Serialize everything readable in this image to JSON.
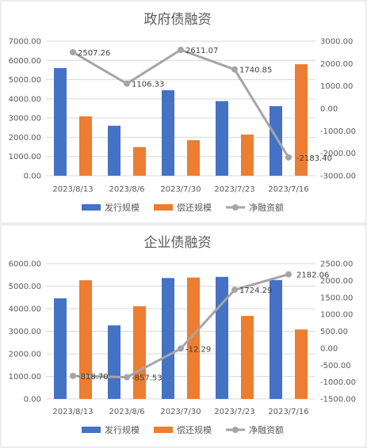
{
  "chart_data": [
    {
      "type": "bar",
      "title": "政府债融资",
      "categories": [
        "2023/8/13",
        "2023/8/6",
        "2023/7/30",
        "2023/7/23",
        "2023/7/16"
      ],
      "ylim_left": [
        0,
        7000
      ],
      "yticks_left": [
        "0.00",
        "1000.00",
        "2000.00",
        "3000.00",
        "4000.00",
        "5000.00",
        "6000.00",
        "7000.00"
      ],
      "ylim_right": [
        -3000,
        3000
      ],
      "yticks_right": [
        "-3000.00",
        "-2000.00",
        "-1000.00",
        "0.00",
        "1000.00",
        "2000.00",
        "3000.00"
      ],
      "series": [
        {
          "name": "发行规模",
          "type": "bar",
          "axis": "left",
          "color": "#4472C4",
          "values": [
            5600,
            2600,
            4450,
            3880,
            3620
          ]
        },
        {
          "name": "偿还规模",
          "type": "bar",
          "axis": "left",
          "color": "#ED7D31",
          "values": [
            3090,
            1490,
            1850,
            2140,
            5800
          ]
        },
        {
          "name": "净融资额",
          "type": "line",
          "axis": "right",
          "color": "#A5A5A5",
          "values": [
            2507.26,
            1106.33,
            2611.07,
            1740.85,
            -2183.4
          ],
          "labels": [
            "2507.26",
            "1106.33",
            "2611.07",
            "1740.85",
            "-2183.40"
          ]
        }
      ],
      "grid": true,
      "legend": "bottom"
    },
    {
      "type": "bar",
      "title": "企业债融资",
      "categories": [
        "2023/8/13",
        "2023/8/6",
        "2023/7/30",
        "2023/7/23",
        "2023/7/16"
      ],
      "ylim_left": [
        0,
        6000
      ],
      "yticks_left": [
        "0.00",
        "1000.00",
        "2000.00",
        "3000.00",
        "4000.00",
        "5000.00",
        "6000.00"
      ],
      "ylim_right": [
        -1500,
        2500
      ],
      "yticks_right": [
        "-1500.00",
        "-1000.00",
        "-500.00",
        "0.00",
        "500.00",
        "1000.00",
        "1500.00",
        "2000.00",
        "2500.00"
      ],
      "series": [
        {
          "name": "发行规模",
          "type": "bar",
          "axis": "left",
          "color": "#4472C4",
          "values": [
            4460,
            3260,
            5360,
            5410,
            5270
          ]
        },
        {
          "name": "偿还规模",
          "type": "bar",
          "axis": "left",
          "color": "#ED7D31",
          "values": [
            5260,
            4110,
            5380,
            3680,
            3080
          ]
        },
        {
          "name": "净融资额",
          "type": "line",
          "axis": "right",
          "color": "#A5A5A5",
          "values": [
            -818.7,
            -857.53,
            -12.29,
            1724.29,
            2182.06
          ],
          "labels": [
            "-818.70",
            "-857.53",
            "-12.29",
            "1724.29",
            "2182.06"
          ]
        }
      ],
      "grid": true,
      "legend": "bottom"
    }
  ]
}
